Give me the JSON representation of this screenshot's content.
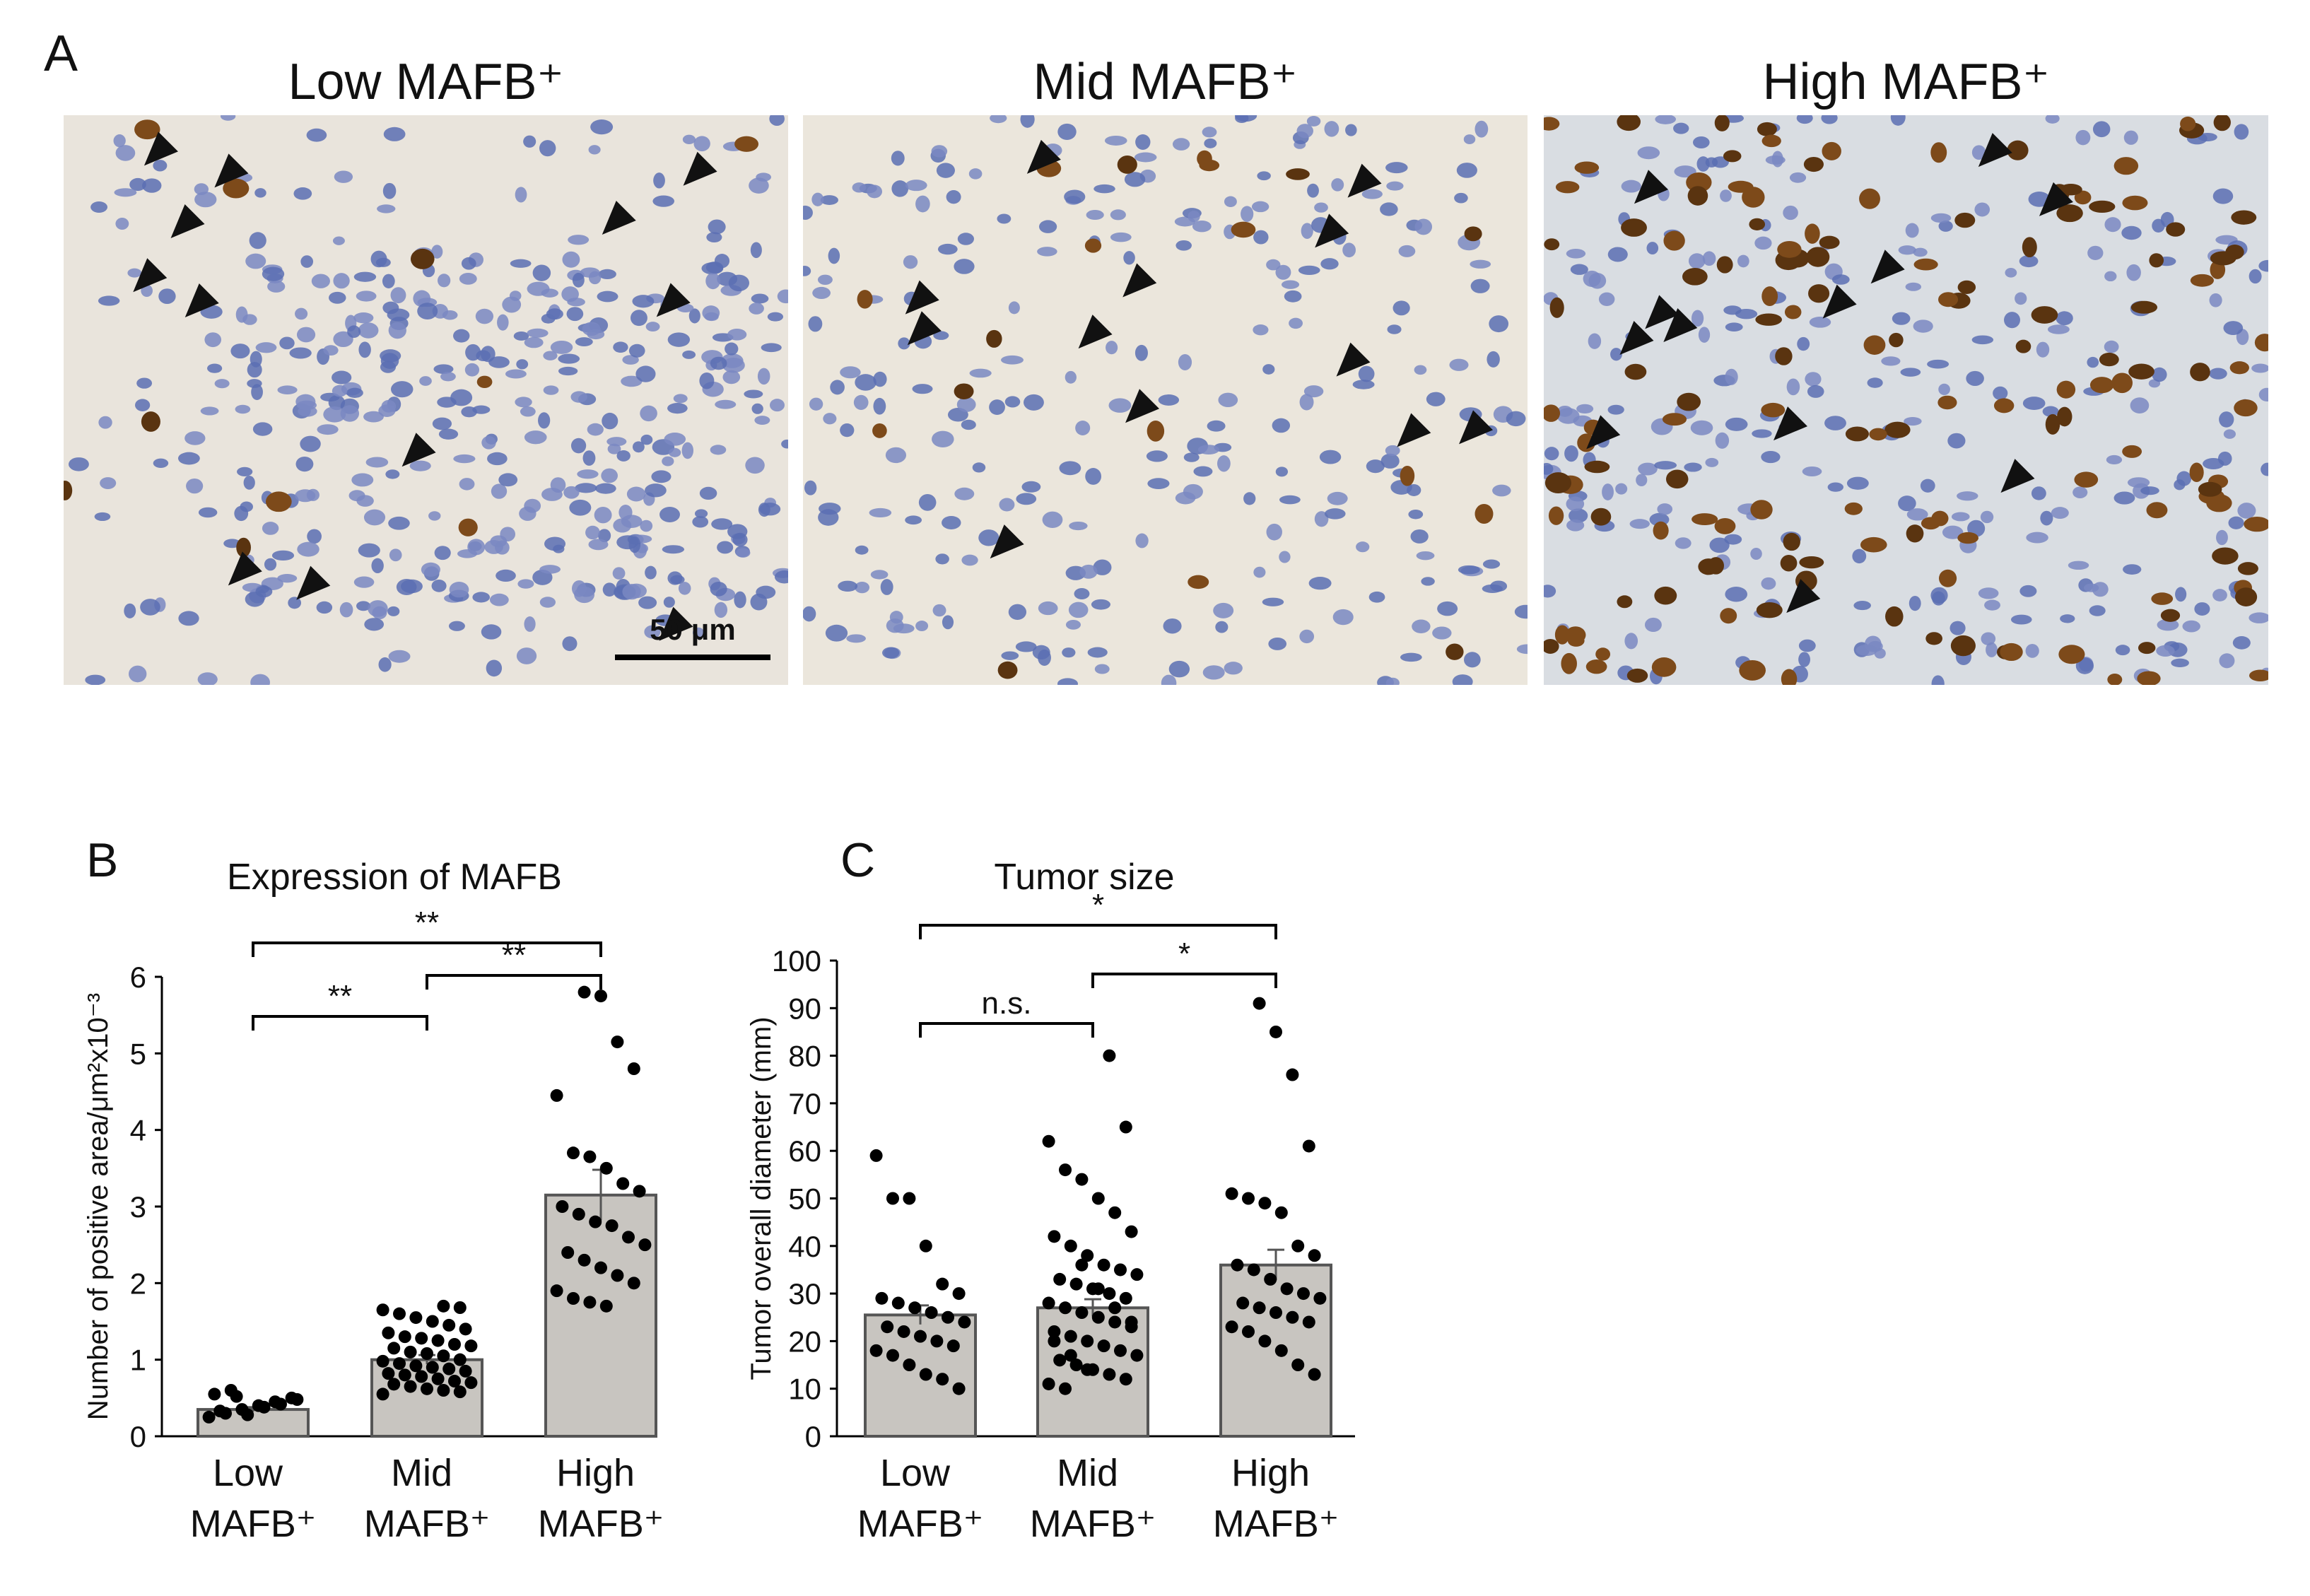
{
  "panel_a": {
    "label": "A",
    "images": [
      {
        "title": "Low MAFB⁺"
      },
      {
        "title": "Mid MAFB⁺"
      },
      {
        "title": "High MAFB⁺"
      }
    ],
    "scale_bar": "50 μm"
  },
  "chart_data": [
    {
      "type": "bar",
      "panel": "B",
      "title": "Expression of MAFB",
      "y_label": "Number of positive area/μm²x10⁻³",
      "categories": [
        "Low MAFB⁺",
        "Mid MAFB⁺",
        "High MAFB⁺"
      ],
      "values": [
        0.35,
        1.0,
        3.15
      ],
      "errors": [
        0.03,
        0.06,
        0.33
      ],
      "color": "#c8c5c0",
      "points": [
        [
          0.25,
          0.3,
          0.35,
          0.4,
          0.45,
          0.5,
          0.55,
          0.6,
          0.28,
          0.38,
          0.42,
          0.48,
          0.33,
          0.52
        ],
        [
          1.7,
          1.68,
          1.65,
          1.6,
          1.55,
          1.5,
          1.45,
          1.4,
          1.35,
          1.3,
          1.28,
          1.25,
          1.2,
          1.18,
          1.15,
          1.1,
          1.08,
          1.05,
          1.0,
          0.98,
          0.95,
          0.92,
          0.9,
          0.88,
          0.85,
          0.82,
          0.8,
          0.78,
          0.75,
          0.72,
          0.7,
          0.68,
          0.65,
          0.62,
          0.6,
          0.58,
          0.55
        ],
        [
          5.8,
          5.75,
          5.15,
          4.8,
          4.45,
          3.7,
          3.65,
          3.5,
          3.3,
          3.2,
          3.0,
          2.9,
          2.8,
          2.75,
          2.6,
          2.5,
          2.4,
          2.3,
          2.2,
          2.1,
          2.0,
          1.9,
          1.8,
          1.75,
          1.7
        ]
      ],
      "comparisons": [
        {
          "from": 0,
          "to": 2,
          "label": "**"
        },
        {
          "from": 1,
          "to": 2,
          "label": "**"
        },
        {
          "from": 0,
          "to": 1,
          "label": "**"
        }
      ],
      "ylim": [
        0,
        6
      ],
      "yticks": [
        0,
        1,
        2,
        3,
        4,
        5,
        6
      ]
    },
    {
      "type": "bar",
      "panel": "C",
      "title": "Tumor size",
      "y_label": "Tumor overall diameter (mm)",
      "categories": [
        "Low MAFB⁺",
        "Mid MAFB⁺",
        "High MAFB⁺"
      ],
      "values": [
        25.5,
        27,
        36
      ],
      "errors": [
        2,
        1.8,
        3.2
      ],
      "color": "#c8c5c0",
      "points": [
        [
          59,
          50,
          50,
          40,
          32,
          30,
          29,
          28,
          27,
          26,
          25,
          24,
          23,
          22,
          21,
          20,
          19,
          18,
          17,
          15,
          13,
          12,
          10
        ],
        [
          80,
          65,
          62,
          56,
          54,
          50,
          47,
          43,
          42,
          40,
          38,
          36,
          35,
          34,
          33,
          32,
          31,
          30,
          29,
          28,
          27,
          26,
          25,
          24,
          23,
          22,
          21,
          20,
          19,
          18,
          17,
          16,
          15,
          14,
          13,
          12,
          11,
          10,
          36,
          31,
          27,
          24,
          20,
          17,
          14
        ],
        [
          91,
          85,
          76,
          61,
          51,
          50,
          49,
          47,
          40,
          38,
          36,
          35,
          33,
          31,
          30,
          29,
          28,
          27,
          26,
          25,
          24,
          23,
          22,
          20,
          18,
          15,
          13
        ]
      ],
      "comparisons": [
        {
          "from": 0,
          "to": 2,
          "label": "*"
        },
        {
          "from": 1,
          "to": 2,
          "label": "*"
        },
        {
          "from": 0,
          "to": 1,
          "label": "n.s."
        }
      ],
      "ylim": [
        0,
        100
      ],
      "yticks": [
        0,
        10,
        20,
        30,
        40,
        50,
        60,
        70,
        80,
        90,
        100
      ]
    }
  ]
}
